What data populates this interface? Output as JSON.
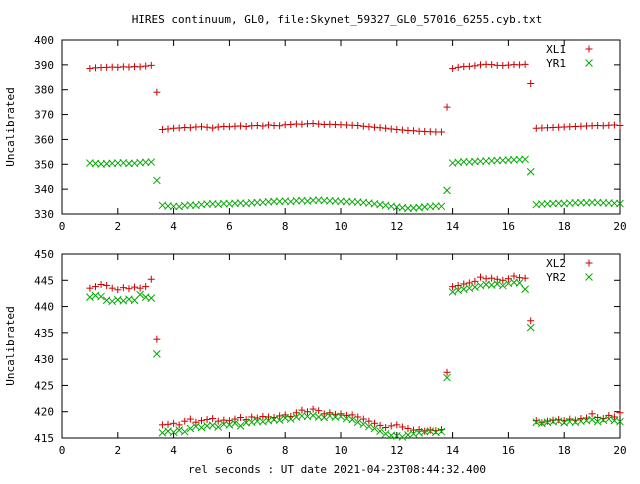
{
  "title": "HIRES continuum, GL0, file:Skynet_59327_GL0_57016_6255.cyb.txt",
  "xlabel": "rel seconds : UT date 2021-04-23T08:44:32.400",
  "colors": {
    "red": "#cc0000",
    "green": "#00aa00"
  },
  "chart_data": [
    {
      "type": "scatter",
      "ylabel": "Uncalibrated",
      "xlim": [
        0,
        20
      ],
      "ylim": [
        330,
        400
      ],
      "xticks": [
        0,
        2,
        4,
        6,
        8,
        10,
        12,
        14,
        16,
        18,
        20
      ],
      "yticks": [
        330,
        340,
        350,
        360,
        370,
        380,
        390,
        400
      ],
      "grid": false,
      "legend_position": "top-right",
      "series": [
        {
          "name": "XL1",
          "marker": "+",
          "color": "#cc0000",
          "x": [
            1.0,
            1.2,
            1.4,
            1.6,
            1.8,
            2.0,
            2.2,
            2.4,
            2.6,
            2.8,
            3.0,
            3.2,
            3.4,
            3.6,
            3.8,
            4.0,
            4.2,
            4.4,
            4.6,
            4.8,
            5.0,
            5.2,
            5.4,
            5.6,
            5.8,
            6.0,
            6.2,
            6.4,
            6.6,
            6.8,
            7.0,
            7.2,
            7.4,
            7.6,
            7.8,
            8.0,
            8.2,
            8.4,
            8.6,
            8.8,
            9.0,
            9.2,
            9.4,
            9.6,
            9.8,
            10.0,
            10.2,
            10.4,
            10.6,
            10.8,
            11.0,
            11.2,
            11.4,
            11.6,
            11.8,
            12.0,
            12.2,
            12.4,
            12.6,
            12.8,
            13.0,
            13.2,
            13.4,
            13.6,
            13.8,
            14.0,
            14.2,
            14.4,
            14.6,
            14.8,
            15.0,
            15.2,
            15.4,
            15.6,
            15.8,
            16.0,
            16.2,
            16.4,
            16.6,
            16.8,
            17.0,
            17.2,
            17.4,
            17.6,
            17.8,
            18.0,
            18.2,
            18.4,
            18.6,
            18.8,
            19.0,
            19.2,
            19.4,
            19.6,
            19.8,
            20.0
          ],
          "y": [
            388.5,
            388.8,
            388.9,
            389.0,
            389.1,
            389.0,
            389.2,
            389.1,
            389.3,
            389.2,
            389.5,
            389.8,
            379.0,
            364.0,
            364.2,
            364.5,
            364.6,
            364.8,
            364.7,
            365.0,
            365.1,
            364.9,
            364.6,
            365.0,
            365.2,
            365.1,
            365.3,
            365.4,
            365.2,
            365.5,
            365.6,
            365.4,
            365.8,
            365.6,
            365.5,
            365.9,
            366.0,
            366.2,
            366.1,
            366.3,
            366.4,
            366.2,
            366.0,
            366.1,
            366.0,
            365.9,
            365.8,
            365.7,
            365.6,
            365.3,
            365.1,
            364.9,
            364.7,
            364.5,
            364.2,
            364.0,
            363.8,
            363.6,
            363.5,
            363.3,
            363.2,
            363.1,
            363.0,
            363.0,
            373.0,
            388.5,
            389.0,
            389.3,
            389.4,
            389.6,
            390.0,
            390.2,
            390.1,
            389.8,
            389.7,
            389.9,
            390.1,
            390.0,
            390.2,
            382.5,
            364.5,
            364.6,
            364.7,
            364.8,
            364.9,
            365.0,
            365.1,
            365.2,
            365.3,
            365.4,
            365.5,
            365.6,
            365.5,
            365.7,
            365.8,
            365.6
          ]
        },
        {
          "name": "YR1",
          "marker": "x",
          "color": "#00aa00",
          "x": [
            1.0,
            1.2,
            1.4,
            1.6,
            1.8,
            2.0,
            2.2,
            2.4,
            2.6,
            2.8,
            3.0,
            3.2,
            3.4,
            3.6,
            3.8,
            4.0,
            4.2,
            4.4,
            4.6,
            4.8,
            5.0,
            5.2,
            5.4,
            5.6,
            5.8,
            6.0,
            6.2,
            6.4,
            6.6,
            6.8,
            7.0,
            7.2,
            7.4,
            7.6,
            7.8,
            8.0,
            8.2,
            8.4,
            8.6,
            8.8,
            9.0,
            9.2,
            9.4,
            9.6,
            9.8,
            10.0,
            10.2,
            10.4,
            10.6,
            10.8,
            11.0,
            11.2,
            11.4,
            11.6,
            11.8,
            12.0,
            12.2,
            12.4,
            12.6,
            12.8,
            13.0,
            13.2,
            13.4,
            13.6,
            13.8,
            14.0,
            14.2,
            14.4,
            14.6,
            14.8,
            15.0,
            15.2,
            15.4,
            15.6,
            15.8,
            16.0,
            16.2,
            16.4,
            16.6,
            16.8,
            17.0,
            17.2,
            17.4,
            17.6,
            17.8,
            18.0,
            18.2,
            18.4,
            18.6,
            18.8,
            19.0,
            19.2,
            19.4,
            19.6,
            19.8,
            20.0
          ],
          "y": [
            350.5,
            350.3,
            350.1,
            350.2,
            350.4,
            350.5,
            350.6,
            350.3,
            350.4,
            350.7,
            350.8,
            350.9,
            343.5,
            333.5,
            333.2,
            333.1,
            333.0,
            333.4,
            333.6,
            333.5,
            333.8,
            334.0,
            334.1,
            333.9,
            334.2,
            334.1,
            334.3,
            334.4,
            334.2,
            334.5,
            334.6,
            334.7,
            334.9,
            335.0,
            335.1,
            335.2,
            335.0,
            335.3,
            335.4,
            335.2,
            335.5,
            335.6,
            335.4,
            335.3,
            335.2,
            335.1,
            335.0,
            334.9,
            334.8,
            334.6,
            334.4,
            334.1,
            333.8,
            333.5,
            333.1,
            332.8,
            332.5,
            332.3,
            332.4,
            332.6,
            332.8,
            333.0,
            333.2,
            333.1,
            339.5,
            350.5,
            350.8,
            351.0,
            350.9,
            351.1,
            351.2,
            351.3,
            351.4,
            351.5,
            351.6,
            351.7,
            351.8,
            351.9,
            352.0,
            347.0,
            333.8,
            334.0,
            334.1,
            334.2,
            334.3,
            334.2,
            334.4,
            334.5,
            334.6,
            334.5,
            334.7,
            334.6,
            334.5,
            334.4,
            334.3,
            334.2
          ]
        }
      ]
    },
    {
      "type": "scatter",
      "ylabel": "Uncalibrated",
      "xlim": [
        0,
        20
      ],
      "ylim": [
        415,
        450
      ],
      "xticks": [
        0,
        2,
        4,
        6,
        8,
        10,
        12,
        14,
        16,
        18,
        20
      ],
      "yticks": [
        415,
        420,
        425,
        430,
        435,
        440,
        445,
        450
      ],
      "grid": false,
      "legend_position": "top-right",
      "series": [
        {
          "name": "XL2",
          "marker": "+",
          "color": "#cc0000",
          "x": [
            1.0,
            1.2,
            1.4,
            1.6,
            1.8,
            2.0,
            2.2,
            2.4,
            2.6,
            2.8,
            3.0,
            3.2,
            3.4,
            3.6,
            3.8,
            4.0,
            4.2,
            4.4,
            4.6,
            4.8,
            5.0,
            5.2,
            5.4,
            5.6,
            5.8,
            6.0,
            6.2,
            6.4,
            6.6,
            6.8,
            7.0,
            7.2,
            7.4,
            7.6,
            7.8,
            8.0,
            8.2,
            8.4,
            8.6,
            8.8,
            9.0,
            9.2,
            9.4,
            9.6,
            9.8,
            10.0,
            10.2,
            10.4,
            10.6,
            10.8,
            11.0,
            11.2,
            11.4,
            11.6,
            11.8,
            12.0,
            12.2,
            12.4,
            12.6,
            12.8,
            13.0,
            13.2,
            13.4,
            13.6,
            13.8,
            14.0,
            14.2,
            14.4,
            14.6,
            14.8,
            15.0,
            15.2,
            15.4,
            15.6,
            15.8,
            16.0,
            16.2,
            16.4,
            16.6,
            16.8,
            17.0,
            17.2,
            17.4,
            17.6,
            17.8,
            18.0,
            18.2,
            18.4,
            18.6,
            18.8,
            19.0,
            19.2,
            19.4,
            19.6,
            19.8,
            20.0
          ],
          "y": [
            443.5,
            443.8,
            444.2,
            444.0,
            443.5,
            443.2,
            443.6,
            443.4,
            443.7,
            443.5,
            443.8,
            445.2,
            433.8,
            417.5,
            417.6,
            417.8,
            417.5,
            418.2,
            418.6,
            418.0,
            418.3,
            418.5,
            418.7,
            418.2,
            418.4,
            418.3,
            418.6,
            418.9,
            418.5,
            419.0,
            418.8,
            419.1,
            419.0,
            418.9,
            419.2,
            419.4,
            419.1,
            419.8,
            420.3,
            420.0,
            420.5,
            420.2,
            419.6,
            419.8,
            419.5,
            419.6,
            419.3,
            419.4,
            419.0,
            418.6,
            418.2,
            417.8,
            417.4,
            417.0,
            417.3,
            417.5,
            417.1,
            416.8,
            416.5,
            416.6,
            416.3,
            416.5,
            416.4,
            416.6,
            427.5,
            443.8,
            444.0,
            444.3,
            444.5,
            444.8,
            445.6,
            445.3,
            445.4,
            445.2,
            445.0,
            445.3,
            445.8,
            445.5,
            445.4,
            437.3,
            418.3,
            417.9,
            418.2,
            418.4,
            418.5,
            418.3,
            418.6,
            418.4,
            418.7,
            418.8,
            419.6,
            418.9,
            418.7,
            419.3,
            419.0,
            419.8
          ]
        },
        {
          "name": "YR2",
          "marker": "x",
          "color": "#00aa00",
          "x": [
            1.0,
            1.2,
            1.4,
            1.6,
            1.8,
            2.0,
            2.2,
            2.4,
            2.6,
            2.8,
            3.0,
            3.2,
            3.4,
            3.6,
            3.8,
            4.0,
            4.2,
            4.4,
            4.6,
            4.8,
            5.0,
            5.2,
            5.4,
            5.6,
            5.8,
            6.0,
            6.2,
            6.4,
            6.6,
            6.8,
            7.0,
            7.2,
            7.4,
            7.6,
            7.8,
            8.0,
            8.2,
            8.4,
            8.6,
            8.8,
            9.0,
            9.2,
            9.4,
            9.6,
            9.8,
            10.0,
            10.2,
            10.4,
            10.6,
            10.8,
            11.0,
            11.2,
            11.4,
            11.6,
            11.8,
            12.0,
            12.2,
            12.4,
            12.6,
            12.8,
            13.0,
            13.2,
            13.4,
            13.6,
            13.8,
            14.0,
            14.2,
            14.4,
            14.6,
            14.8,
            15.0,
            15.2,
            15.4,
            15.6,
            15.8,
            16.0,
            16.2,
            16.4,
            16.6,
            16.8,
            17.0,
            17.2,
            17.4,
            17.6,
            17.8,
            18.0,
            18.2,
            18.4,
            18.6,
            18.8,
            19.0,
            19.2,
            19.4,
            19.6,
            19.8,
            20.0
          ],
          "y": [
            441.8,
            442.1,
            441.9,
            441.2,
            441.0,
            441.3,
            441.1,
            441.4,
            441.2,
            442.3,
            441.8,
            441.6,
            431.0,
            416.0,
            416.3,
            416.1,
            416.5,
            416.2,
            416.8,
            417.2,
            417.0,
            417.3,
            417.4,
            417.1,
            417.6,
            417.5,
            417.8,
            417.3,
            417.9,
            418.0,
            418.2,
            418.1,
            418.3,
            418.5,
            418.4,
            418.8,
            418.6,
            419.0,
            419.2,
            419.1,
            419.3,
            419.0,
            418.9,
            419.2,
            419.0,
            419.1,
            418.7,
            418.5,
            418.0,
            417.6,
            417.2,
            416.8,
            416.3,
            415.8,
            415.5,
            415.4,
            415.2,
            415.6,
            415.8,
            416.0,
            416.2,
            416.3,
            416.1,
            416.2,
            426.5,
            442.8,
            443.1,
            443.3,
            443.5,
            443.7,
            444.0,
            444.2,
            444.1,
            444.3,
            444.0,
            444.4,
            444.6,
            444.5,
            443.3,
            436.0,
            418.0,
            417.8,
            418.0,
            418.1,
            418.2,
            417.9,
            418.1,
            418.0,
            418.2,
            418.3,
            418.5,
            418.1,
            418.4,
            418.6,
            418.3,
            418.1
          ]
        }
      ]
    }
  ]
}
